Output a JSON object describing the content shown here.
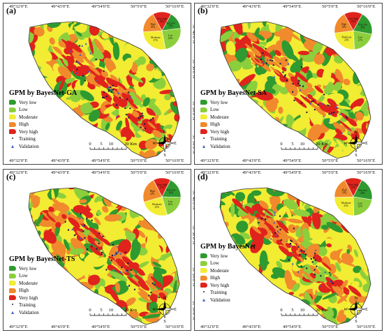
{
  "colors": {
    "very_low": "#2f9a2f",
    "low": "#8ccf3c",
    "moderate": "#f2ec33",
    "high": "#f08a2c",
    "very_high": "#e0231c",
    "training": "#1a1a40",
    "validation": "#3a5bd0"
  },
  "coords": {
    "top": [
      "49°32'0\"E",
      "49°43'0\"E",
      "49°54'0\"E",
      "50°5'0\"E",
      "50°16'0\"E"
    ],
    "right": [
      "31°40'0\"N",
      "31°30'0\"N",
      "31°20'0\"N",
      "31°10'0\"N"
    ]
  },
  "legend": {
    "very_low": "Very low",
    "low": "Low",
    "moderate": "Moderate",
    "high": "High",
    "very_high": "Very high",
    "training": "Training",
    "validation": "Validation"
  },
  "scalebar": {
    "ticks": [
      "0",
      "5",
      "10",
      "20 Km"
    ]
  },
  "north": {
    "N": "N",
    "S": "S",
    "E": "E",
    "W": "W"
  },
  "panels": [
    {
      "letter": "(a)",
      "title": "GPM by BayesNet-GA",
      "pie": {
        "labels": [
          "Very low\n15%",
          "Low\n24%",
          "Moderate\n27%",
          "High\n18%",
          "Very high\n16%"
        ],
        "values": [
          15,
          24,
          27,
          18,
          16
        ]
      }
    },
    {
      "letter": "(b)",
      "title": "GPM by BayesNet-SA",
      "pie": {
        "labels": [
          "Very low\n20%",
          "Low\n21%",
          "Moderate\n24%",
          "High\n19%",
          "Very high\n16%"
        ],
        "values": [
          20,
          21,
          24,
          19,
          16
        ]
      }
    },
    {
      "letter": "(c)",
      "title": "GPM by BayesNet-TS",
      "pie": {
        "labels": [
          "Very low\n18%",
          "Low\n20%",
          "Moderate\n25%",
          "High\n22%",
          "Very high\n15%"
        ],
        "values": [
          18,
          20,
          25,
          22,
          15
        ]
      }
    },
    {
      "letter": "(d)",
      "title": "GPM by BayesNet",
      "pie": {
        "labels": [
          "Very low\n20%",
          "Low\n22%",
          "Moderate\n25%",
          "High\n18%",
          "Very high\n15%"
        ],
        "values": [
          20,
          22,
          25,
          18,
          15
        ]
      }
    }
  ]
}
